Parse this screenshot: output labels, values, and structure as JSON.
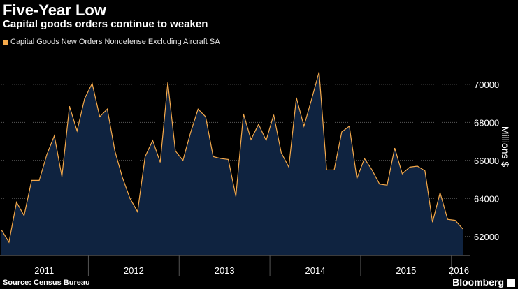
{
  "header": {
    "title": "Five-Year Low",
    "subtitle": "Capital goods orders continue to weaken"
  },
  "footer": {
    "source": "Source: Census Bureau",
    "brand": "Bloomberg"
  },
  "colors": {
    "background": "#000000",
    "line": "#f5a94a",
    "area": "#0f2340",
    "grid": "#5a5a5a"
  },
  "chart_data": {
    "type": "area",
    "title": "Five-Year Low",
    "subtitle": "Capital goods orders continue to weaken",
    "ylabel": "Millions $",
    "xlabel": "",
    "ylim": [
      61000,
      71500
    ],
    "yticks": [
      62000,
      64000,
      66000,
      68000,
      70000
    ],
    "ytick_labels": [
      "62000",
      "64000",
      "66000",
      "68000",
      "70000"
    ],
    "y_axis_side": "right",
    "grid": "horizontal dotted",
    "legend_position": "top-left",
    "year_labels": [
      "2011",
      "2012",
      "2013",
      "2014",
      "2015",
      "2016"
    ],
    "series": [
      {
        "name": "Capital Goods New Orders Nondefense Excluding Aircraft SA",
        "start": "2011-01",
        "frequency": "monthly",
        "values": [
          62350,
          61700,
          63800,
          63100,
          64950,
          64950,
          66300,
          67300,
          65150,
          68850,
          67550,
          69250,
          70050,
          68300,
          68700,
          66500,
          65100,
          64000,
          63300,
          66200,
          67050,
          65900,
          70100,
          66500,
          66000,
          67450,
          68700,
          68300,
          66200,
          66100,
          66050,
          64100,
          68450,
          67100,
          67900,
          67050,
          68400,
          66400,
          65650,
          69300,
          67800,
          69200,
          70650,
          65500,
          65500,
          67500,
          67800,
          65050,
          66100,
          65500,
          64750,
          64700,
          66650,
          65300,
          65650,
          65700,
          65450,
          62750,
          64300,
          62900,
          62850,
          62400
        ]
      }
    ]
  }
}
